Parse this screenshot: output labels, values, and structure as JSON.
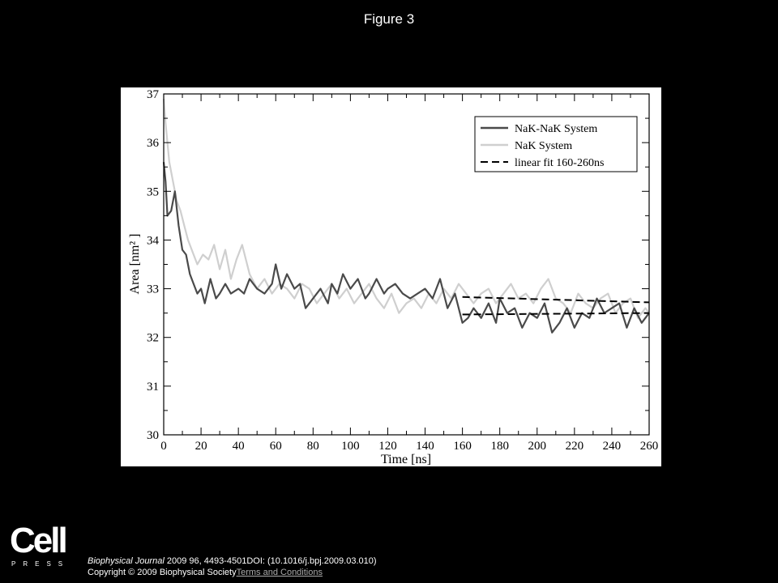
{
  "figure_title": "Figure 3",
  "citation": {
    "journal": "Biophysical Journal",
    "details": " 2009 96, 4493-4501DOI: (10.1016/j.bpj.2009.03.010)",
    "copyright": "Copyright © 2009 Biophysical Society",
    "terms_link": "Terms and Conditions"
  },
  "logo": {
    "word": "Cell",
    "sub": "PRESS"
  },
  "colors": {
    "nak_nak": "#4a4a4a",
    "nak": "#cfcfcf",
    "fit": "#000000"
  },
  "chart_data": {
    "type": "line",
    "xlabel": "Time [ns]",
    "ylabel": "Area  [nm² ]",
    "xlim": [
      0,
      260
    ],
    "ylim": [
      30,
      37
    ],
    "xticks": [
      0,
      20,
      40,
      60,
      80,
      100,
      120,
      140,
      160,
      180,
      200,
      220,
      240,
      260
    ],
    "yticks": [
      30,
      31,
      32,
      33,
      34,
      35,
      36,
      37
    ],
    "grid": false,
    "legend_position": "top-right",
    "series": [
      {
        "name": "NaK-NaK System",
        "style": "solid-dark",
        "x": [
          0,
          1,
          2,
          4,
          6,
          8,
          10,
          12,
          14,
          16,
          18,
          20,
          22,
          25,
          28,
          30,
          33,
          36,
          40,
          43,
          46,
          50,
          54,
          58,
          60,
          63,
          66,
          70,
          73,
          76,
          80,
          84,
          88,
          90,
          93,
          96,
          100,
          104,
          108,
          110,
          114,
          118,
          120,
          124,
          128,
          132,
          136,
          140,
          144,
          148,
          152,
          156,
          160,
          163,
          166,
          170,
          174,
          178,
          180,
          184,
          188,
          192,
          196,
          200,
          204,
          208,
          212,
          216,
          220,
          224,
          228,
          232,
          236,
          240,
          244,
          248,
          252,
          256,
          260
        ],
        "y": [
          35.6,
          35.2,
          34.5,
          34.6,
          35.0,
          34.3,
          33.8,
          33.7,
          33.3,
          33.1,
          32.9,
          33.0,
          32.7,
          33.2,
          32.8,
          32.9,
          33.1,
          32.9,
          33.0,
          32.9,
          33.2,
          33.0,
          32.9,
          33.1,
          33.5,
          33.0,
          33.3,
          33.0,
          33.1,
          32.6,
          32.8,
          33.0,
          32.7,
          33.1,
          32.9,
          33.3,
          33.0,
          33.2,
          32.8,
          32.9,
          33.2,
          32.9,
          33.0,
          33.1,
          32.9,
          32.8,
          32.9,
          33.0,
          32.8,
          33.2,
          32.6,
          32.9,
          32.3,
          32.4,
          32.6,
          32.4,
          32.7,
          32.3,
          32.8,
          32.5,
          32.6,
          32.2,
          32.5,
          32.4,
          32.7,
          32.1,
          32.3,
          32.6,
          32.2,
          32.5,
          32.4,
          32.8,
          32.5,
          32.6,
          32.7,
          32.2,
          32.6,
          32.3,
          32.5
        ]
      },
      {
        "name": "NaK System",
        "style": "solid-light",
        "x": [
          0,
          1,
          2,
          3,
          5,
          7,
          9,
          11,
          13,
          15,
          18,
          21,
          24,
          27,
          30,
          33,
          36,
          39,
          42,
          46,
          50,
          54,
          58,
          62,
          66,
          70,
          74,
          78,
          82,
          86,
          90,
          94,
          98,
          102,
          106,
          110,
          114,
          118,
          122,
          126,
          130,
          134,
          138,
          142,
          146,
          150,
          154,
          158,
          162,
          166,
          170,
          174,
          178,
          182,
          186,
          190,
          194,
          198,
          202,
          206,
          210,
          214,
          218,
          222,
          226,
          230,
          234,
          238,
          242,
          246,
          250,
          254,
          258,
          260
        ],
        "y": [
          36.9,
          36.4,
          36.0,
          35.6,
          35.2,
          34.8,
          34.6,
          34.3,
          34.0,
          33.8,
          33.5,
          33.7,
          33.6,
          33.9,
          33.4,
          33.8,
          33.2,
          33.6,
          33.9,
          33.3,
          33.0,
          33.2,
          32.9,
          33.1,
          33.0,
          32.8,
          33.1,
          33.0,
          32.7,
          32.9,
          33.1,
          32.8,
          33.0,
          32.7,
          32.9,
          33.1,
          32.8,
          32.6,
          32.9,
          32.5,
          32.7,
          32.8,
          32.6,
          32.9,
          32.7,
          33.0,
          32.8,
          33.1,
          32.9,
          32.7,
          32.9,
          33.0,
          32.7,
          32.9,
          33.1,
          32.8,
          32.9,
          32.7,
          33.0,
          33.2,
          32.8,
          32.7,
          32.5,
          32.9,
          32.7,
          32.6,
          32.8,
          32.9,
          32.5,
          32.7,
          32.8,
          32.4,
          32.6,
          32.5
        ]
      },
      {
        "name": "linear fit 160-260ns",
        "style": "dashed",
        "segments": [
          {
            "x": [
              160,
              260
            ],
            "y": [
              32.83,
              32.72
            ]
          },
          {
            "x": [
              160,
              260
            ],
            "y": [
              32.47,
              32.5
            ]
          }
        ]
      }
    ]
  }
}
